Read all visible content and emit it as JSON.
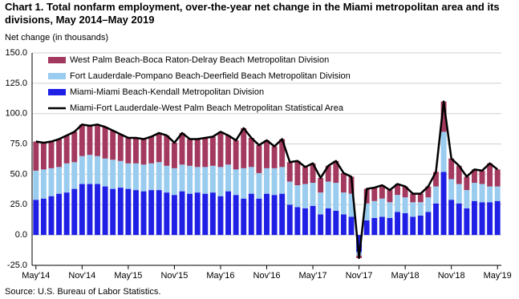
{
  "chart_data": {
    "type": "bar",
    "title": "Chart 1. Total nonfarm employment, over-the-year net change in the Miami metropolitan area and its divisions, May 2014–May 2019",
    "y_label": "Net change (in thousands)",
    "source": "Source: U.S. Bureau of Labor Statistics.",
    "categories": [
      "May'14",
      null,
      null,
      null,
      null,
      null,
      "Nov'14",
      null,
      null,
      null,
      null,
      null,
      "May'15",
      null,
      null,
      null,
      null,
      null,
      "Nov'15",
      null,
      null,
      null,
      null,
      null,
      "May'16",
      null,
      null,
      null,
      null,
      null,
      "Nov'16",
      null,
      null,
      null,
      null,
      null,
      "May'17",
      null,
      null,
      null,
      null,
      null,
      "Nov'17",
      null,
      null,
      null,
      null,
      null,
      "May'18",
      null,
      null,
      null,
      null,
      null,
      "Nov'18",
      null,
      null,
      null,
      null,
      null,
      "May'19"
    ],
    "series": [
      {
        "name": "West Palm Beach-Boca Raton-Delray Beach Metropolitan Division",
        "color": "#a3395f",
        "values": [
          24,
          22,
          22,
          23,
          23,
          25,
          26,
          24,
          26,
          26,
          24,
          22,
          21,
          21,
          21,
          22,
          24,
          25,
          21,
          26,
          22,
          23,
          24,
          24,
          29,
          24,
          24,
          33,
          24,
          23,
          23,
          18,
          23,
          16,
          20,
          14,
          16,
          12,
          13,
          18,
          16,
          14,
          -2,
          12,
          11,
          11,
          10,
          9,
          9,
          7,
          7,
          9,
          12,
          25,
          17,
          15,
          11,
          11,
          11,
          19,
          14
        ]
      },
      {
        "name": "Fort Lauderdale-Pompano Beach-Deerfield Beach Metropolitan Division",
        "color": "#99ccee",
        "values": [
          24,
          24,
          23,
          22,
          24,
          22,
          23,
          24,
          23,
          23,
          24,
          22,
          21,
          22,
          22,
          22,
          23,
          22,
          22,
          22,
          23,
          21,
          22,
          22,
          24,
          22,
          21,
          25,
          22,
          21,
          21,
          22,
          22,
          19,
          18,
          20,
          19,
          18,
          22,
          23,
          18,
          19,
          -3,
          14,
          14,
          15,
          13,
          14,
          13,
          12,
          11,
          12,
          14,
          33,
          17,
          16,
          15,
          15,
          15,
          13,
          12
        ]
      },
      {
        "name": "Miami-Miami Beach-Kendall Metropolitan Division",
        "color": "#1f1fe6",
        "values": [
          29,
          30,
          32,
          34,
          35,
          38,
          42,
          42,
          42,
          40,
          38,
          39,
          38,
          37,
          36,
          37,
          37,
          35,
          33,
          36,
          34,
          35,
          34,
          35,
          32,
          36,
          33,
          30,
          34,
          30,
          34,
          33,
          34,
          25,
          23,
          22,
          24,
          17,
          22,
          20,
          17,
          15,
          -14,
          12,
          14,
          15,
          14,
          19,
          18,
          15,
          16,
          19,
          26,
          52,
          29,
          26,
          22,
          28,
          27,
          27,
          28
        ]
      },
      {
        "name": "Miami-Fort Lauderdale-West Palm Beach Metropolitan Statistical Area",
        "color": "#000000",
        "type": "line",
        "values": [
          77,
          76,
          77,
          79,
          82,
          85,
          91,
          90,
          91,
          89,
          86,
          83,
          80,
          80,
          79,
          81,
          84,
          82,
          76,
          84,
          79,
          79,
          80,
          81,
          85,
          82,
          78,
          88,
          80,
          74,
          78,
          73,
          79,
          60,
          61,
          56,
          59,
          47,
          57,
          61,
          51,
          48,
          -19,
          38,
          39,
          41,
          37,
          42,
          40,
          34,
          34,
          40,
          52,
          110,
          63,
          57,
          48,
          54,
          53,
          59,
          54
        ]
      }
    ],
    "ylim": [
      -25,
      150
    ],
    "yticks": [
      {
        "value": -25,
        "label": "-25.0"
      },
      {
        "value": 0,
        "label": "0.0"
      },
      {
        "value": 25,
        "label": "25.0"
      },
      {
        "value": 50,
        "label": "50.0"
      },
      {
        "value": 75,
        "label": "75.0"
      },
      {
        "value": 100,
        "label": "100.0"
      },
      {
        "value": 125,
        "label": "125.0"
      },
      {
        "value": 150,
        "label": "150.0"
      }
    ],
    "grid": true
  }
}
